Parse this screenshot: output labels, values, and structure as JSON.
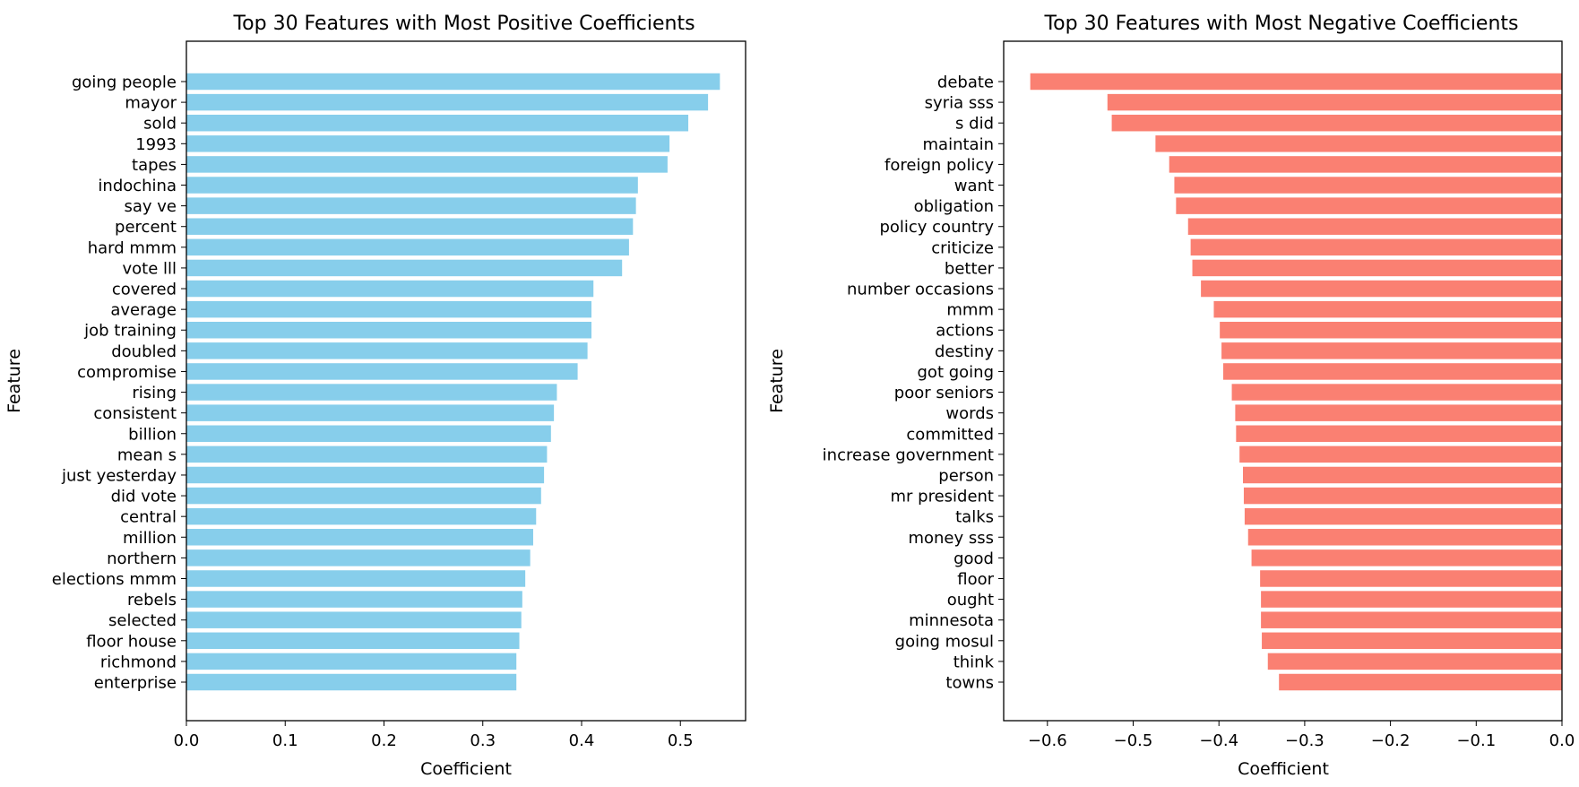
{
  "chart_data": [
    {
      "type": "bar",
      "orientation": "horizontal",
      "title": "Top 30 Features with Most Positive Coefficients",
      "xlabel": "Coefficient",
      "ylabel": "Feature",
      "xlim": [
        0,
        0.566
      ],
      "xticks": [
        "0.0",
        "0.1",
        "0.2",
        "0.3",
        "0.4",
        "0.5"
      ],
      "xtick_values": [
        0,
        0.1,
        0.2,
        0.3,
        0.4,
        0.5
      ],
      "color": "#87ceeb",
      "grid": false,
      "legend": "none",
      "categories": [
        "going people",
        "mayor",
        "sold",
        "1993",
        "tapes",
        "indochina",
        "say ve",
        "percent",
        "hard mmm",
        "vote lll",
        "covered",
        "average",
        "job training",
        "doubled",
        "compromise",
        "rising",
        "consistent",
        "billion",
        "mean s",
        "just yesterday",
        "did vote",
        "central",
        "million",
        "northern",
        "elections mmm",
        "rebels",
        "selected",
        "floor house",
        "richmond",
        "enterprise"
      ],
      "values": [
        0.54,
        0.528,
        0.508,
        0.489,
        0.487,
        0.457,
        0.455,
        0.452,
        0.448,
        0.441,
        0.412,
        0.41,
        0.41,
        0.406,
        0.396,
        0.375,
        0.372,
        0.369,
        0.365,
        0.362,
        0.359,
        0.354,
        0.351,
        0.348,
        0.343,
        0.34,
        0.339,
        0.337,
        0.334,
        0.334
      ]
    },
    {
      "type": "bar",
      "orientation": "horizontal",
      "title": "Top 30 Features with Most Negative Coefficients",
      "xlabel": "Coefficient",
      "ylabel": "Feature",
      "xlim": [
        -0.651,
        0
      ],
      "xticks": [
        "−0.6",
        "−0.5",
        "−0.4",
        "−0.3",
        "−0.2",
        "−0.1",
        "0.0"
      ],
      "xtick_values": [
        -0.6,
        -0.5,
        -0.4,
        -0.3,
        -0.2,
        -0.1,
        0
      ],
      "color": "#fa8072",
      "grid": false,
      "legend": "none",
      "categories": [
        "debate",
        "syria sss",
        "s did",
        "maintain",
        "foreign policy",
        "want",
        "obligation",
        "policy country",
        "criticize",
        "better",
        "number occasions",
        "mmm",
        "actions",
        "destiny",
        "got going",
        "poor seniors",
        "words",
        "committed",
        "increase government",
        "person",
        "mr president",
        "talks",
        "money sss",
        "good",
        "floor",
        "ought",
        "minnesota",
        "going mosul",
        "think",
        "towns"
      ],
      "values": [
        -0.62,
        -0.53,
        -0.525,
        -0.474,
        -0.458,
        -0.452,
        -0.45,
        -0.436,
        -0.433,
        -0.431,
        -0.421,
        -0.406,
        -0.399,
        -0.397,
        -0.395,
        -0.385,
        -0.381,
        -0.38,
        -0.376,
        -0.372,
        -0.371,
        -0.37,
        -0.366,
        -0.362,
        -0.352,
        -0.351,
        -0.351,
        -0.35,
        -0.343,
        -0.33
      ]
    }
  ]
}
